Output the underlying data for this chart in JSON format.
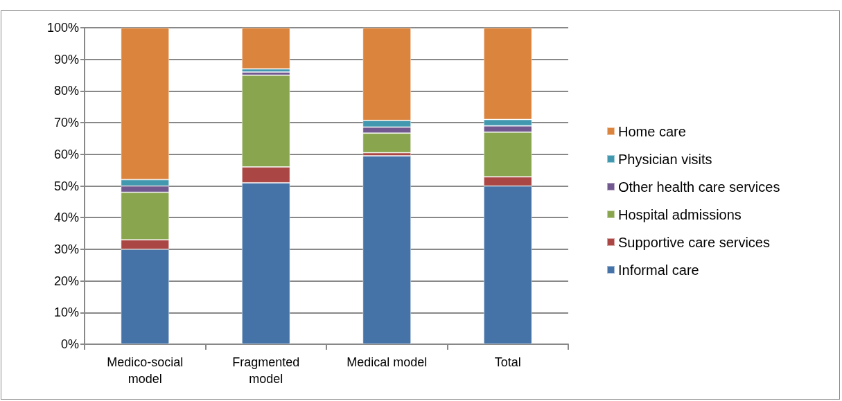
{
  "chart_data": {
    "type": "bar",
    "stacked": true,
    "categories": [
      "Medico-social\nmodel",
      "Fragmented\nmodel",
      "Medical model",
      "Total"
    ],
    "series": [
      {
        "name": "Informal care",
        "color": "#4572a7",
        "values": [
          30,
          51,
          59.5,
          50
        ]
      },
      {
        "name": "Supportive care services",
        "color": "#aa4643",
        "values": [
          3,
          5,
          1,
          2.9
        ]
      },
      {
        "name": "Hospital admissions",
        "color": "#89a54e",
        "values": [
          15,
          29,
          6.2,
          14.1
        ]
      },
      {
        "name": "Other health care services",
        "color": "#71588f",
        "values": [
          2,
          1,
          1.9,
          2
        ]
      },
      {
        "name": "Physician visits",
        "color": "#4198af",
        "values": [
          2,
          1,
          2.1,
          2
        ]
      },
      {
        "name": "Home care",
        "color": "#db843d",
        "values": [
          48,
          13,
          29.3,
          29
        ]
      }
    ],
    "ylim": [
      0,
      100
    ],
    "yticks": [
      {
        "value": 0,
        "label": "0%"
      },
      {
        "value": 10,
        "label": "10%"
      },
      {
        "value": 20,
        "label": "20%"
      },
      {
        "value": 30,
        "label": "30%"
      },
      {
        "value": 40,
        "label": "40%"
      },
      {
        "value": 50,
        "label": "50%"
      },
      {
        "value": 60,
        "label": "60%"
      },
      {
        "value": 70,
        "label": "70%"
      },
      {
        "value": 80,
        "label": "80%"
      },
      {
        "value": 90,
        "label": "90%"
      },
      {
        "value": 100,
        "label": "100%"
      }
    ],
    "grid": "y",
    "legend": "right"
  }
}
